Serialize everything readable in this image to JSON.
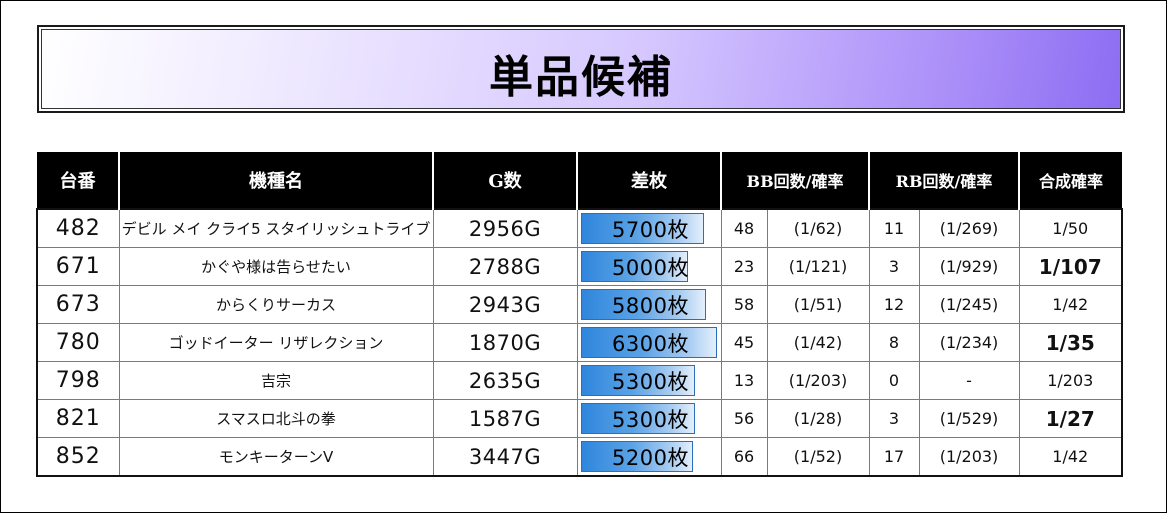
{
  "title": "単品候補",
  "headers": {
    "no": "台番",
    "name": "機種名",
    "games": "G数",
    "diff": "差枚",
    "bb": "BB回数/確率",
    "rb": "RB回数/確率",
    "combined": "合成確率"
  },
  "rows": [
    {
      "no": "482",
      "name": "デビル メイ クライ5 スタイリッシュトライブ",
      "games": "2956G",
      "diff": "5700枚",
      "diff_value": 5700,
      "bb_count": "48",
      "bb_rate": "(1/62)",
      "rb_count": "11",
      "rb_rate": "(1/269)",
      "combined": "1/50"
    },
    {
      "no": "671",
      "name": "かぐや様は告らせたい",
      "games": "2788G",
      "diff": "5000枚",
      "diff_value": 5000,
      "bb_count": "23",
      "bb_rate": "(1/121)",
      "rb_count": "3",
      "rb_rate": "(1/929)",
      "combined": "1/107"
    },
    {
      "no": "673",
      "name": "からくりサーカス",
      "games": "2943G",
      "diff": "5800枚",
      "diff_value": 5800,
      "bb_count": "58",
      "bb_rate": "(1/51)",
      "rb_count": "12",
      "rb_rate": "(1/245)",
      "combined": "1/42"
    },
    {
      "no": "780",
      "name": "ゴッドイーター リザレクション",
      "games": "1870G",
      "diff": "6300枚",
      "diff_value": 6300,
      "bb_count": "45",
      "bb_rate": "(1/42)",
      "rb_count": "8",
      "rb_rate": "(1/234)",
      "combined": "1/35"
    },
    {
      "no": "798",
      "name": "吉宗",
      "games": "2635G",
      "diff": "5300枚",
      "diff_value": 5300,
      "bb_count": "13",
      "bb_rate": "(1/203)",
      "rb_count": "0",
      "rb_rate": "-",
      "combined": "1/203"
    },
    {
      "no": "821",
      "name": "スマスロ北斗の拳",
      "games": "1587G",
      "diff": "5300枚",
      "diff_value": 5300,
      "bb_count": "56",
      "bb_rate": "(1/28)",
      "rb_count": "3",
      "rb_rate": "(1/529)",
      "combined": "1/27"
    },
    {
      "no": "852",
      "name": "モンキーターンV",
      "games": "3447G",
      "diff": "5200枚",
      "diff_value": 5200,
      "bb_count": "66",
      "bb_rate": "(1/52)",
      "rb_count": "17",
      "rb_rate": "(1/203)",
      "combined": "1/42"
    }
  ],
  "bold_combined": [
    "671",
    "780",
    "821"
  ],
  "colors": {
    "bar": "#2f86dc",
    "header_bg": "#000000",
    "title_gradient_end": "#8c6cf2"
  }
}
